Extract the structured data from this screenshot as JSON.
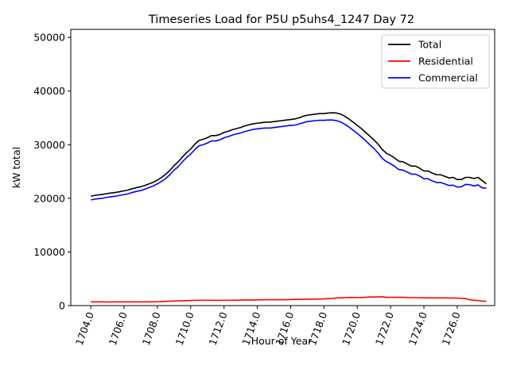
{
  "chart_data": {
    "type": "line",
    "title": "Timeseries Load for P5U p5uhs4_1247  Day 72",
    "xlabel": "Hour of Year",
    "ylabel": "kW total",
    "xlim": [
      1702.8,
      1728.25
    ],
    "ylim": [
      0,
      51500
    ],
    "xticks": [
      1704,
      1706,
      1708,
      1710,
      1712,
      1714,
      1716,
      1718,
      1720,
      1722,
      1724,
      1726
    ],
    "xtick_labels": [
      "1704.0",
      "1706.0",
      "1708.0",
      "1710.0",
      "1712.0",
      "1714.0",
      "1716.0",
      "1718.0",
      "1720.0",
      "1722.0",
      "1724.0",
      "1726.0"
    ],
    "yticks": [
      0,
      10000,
      20000,
      30000,
      40000,
      50000
    ],
    "ytick_labels": [
      "0",
      "10000",
      "20000",
      "30000",
      "40000",
      "50000"
    ],
    "legend_position": "top-right",
    "x_start": 1704.0,
    "x_step": 0.25,
    "series": [
      {
        "name": "Total",
        "color": "#000000",
        "values": [
          20400,
          20550,
          20650,
          20750,
          20900,
          21000,
          21100,
          21250,
          21400,
          21550,
          21800,
          22000,
          22150,
          22400,
          22700,
          23000,
          23400,
          23900,
          24500,
          25200,
          26100,
          26800,
          27700,
          28500,
          29200,
          30100,
          30800,
          31000,
          31300,
          31700,
          31700,
          31900,
          32300,
          32500,
          32800,
          33000,
          33200,
          33500,
          33700,
          33900,
          34000,
          34100,
          34200,
          34200,
          34300,
          34400,
          34500,
          34600,
          34700,
          34800,
          35000,
          35300,
          35500,
          35600,
          35700,
          35800,
          35800,
          35900,
          35950,
          35900,
          35700,
          35300,
          34800,
          34200,
          33600,
          33000,
          32300,
          31600,
          30900,
          30100,
          29100,
          28400,
          28000,
          27500,
          26900,
          26800,
          26400,
          26000,
          26000,
          25600,
          25100,
          25100,
          24700,
          24400,
          24400,
          24100,
          23800,
          23900,
          23500,
          23500,
          23900,
          23900,
          23700,
          23900,
          23300,
          22700
        ]
      },
      {
        "name": "Residential",
        "color": "#ff0000",
        "values": [
          700,
          700,
          690,
          690,
          680,
          680,
          690,
          700,
          700,
          700,
          700,
          690,
          680,
          690,
          700,
          700,
          720,
          750,
          780,
          820,
          850,
          880,
          900,
          920,
          950,
          980,
          1000,
          1000,
          1000,
          1000,
          980,
          980,
          1000,
          1000,
          1000,
          1000,
          1020,
          1050,
          1050,
          1050,
          1070,
          1080,
          1100,
          1100,
          1100,
          1100,
          1100,
          1100,
          1120,
          1150,
          1150,
          1180,
          1200,
          1200,
          1220,
          1230,
          1250,
          1300,
          1350,
          1420,
          1450,
          1480,
          1500,
          1500,
          1480,
          1500,
          1550,
          1600,
          1600,
          1620,
          1650,
          1550,
          1550,
          1550,
          1550,
          1550,
          1500,
          1480,
          1480,
          1460,
          1450,
          1450,
          1430,
          1430,
          1430,
          1430,
          1420,
          1420,
          1400,
          1350,
          1300,
          1100,
          1000,
          950,
          850,
          800
        ]
      },
      {
        "name": "Commercial",
        "color": "#0000ff",
        "values": [
          19700,
          19850,
          19950,
          20050,
          20200,
          20300,
          20400,
          20550,
          20700,
          20850,
          21100,
          21300,
          21450,
          21700,
          22000,
          22300,
          22700,
          23150,
          23700,
          24400,
          25250,
          25900,
          26800,
          27600,
          28250,
          29100,
          29800,
          30000,
          30300,
          30700,
          30700,
          30900,
          31300,
          31500,
          31800,
          32000,
          32200,
          32450,
          32650,
          32850,
          32950,
          33050,
          33100,
          33100,
          33200,
          33300,
          33400,
          33500,
          33600,
          33650,
          33850,
          34100,
          34300,
          34400,
          34500,
          34550,
          34550,
          34600,
          34600,
          34480,
          34250,
          33800,
          33300,
          32700,
          32100,
          31450,
          30750,
          30000,
          29300,
          28450,
          27450,
          26850,
          26450,
          25950,
          25350,
          25250,
          24900,
          24500,
          24500,
          24150,
          23650,
          23650,
          23250,
          22950,
          22950,
          22700,
          22400,
          22450,
          22100,
          22150,
          22600,
          22550,
          22300,
          22500,
          21950,
          21900
        ]
      }
    ]
  }
}
